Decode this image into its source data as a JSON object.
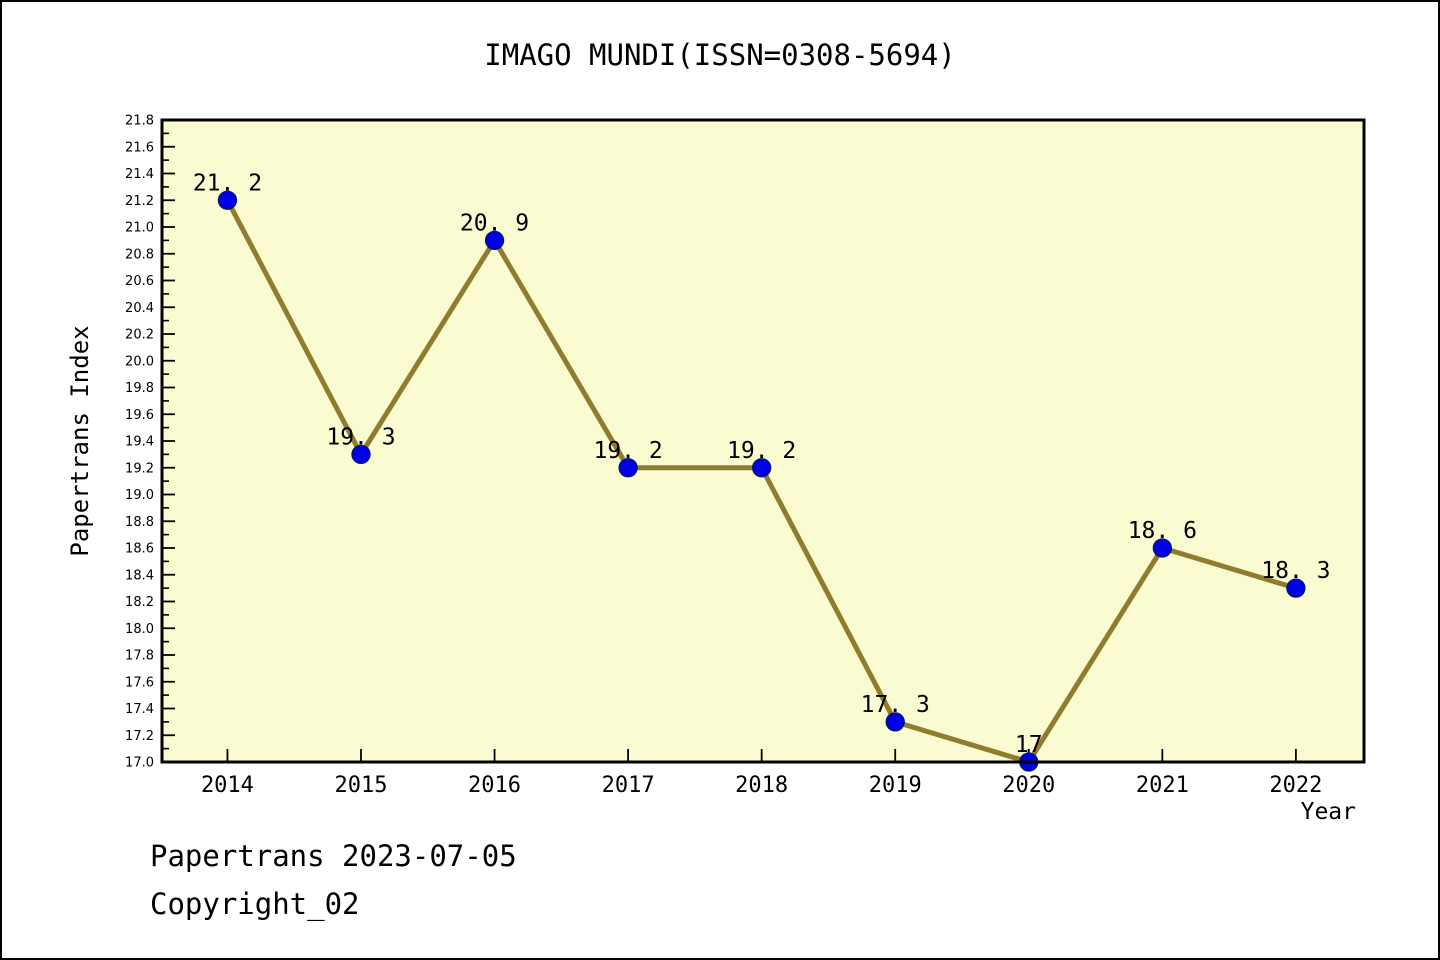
{
  "figure": {
    "footer": {
      "line1": "Papertrans 2023-07-05",
      "line2": "Copyright_02"
    }
  },
  "chart_data": {
    "type": "line",
    "title": "IMAGO MUNDI(ISSN=0308-5694)",
    "xlabel": "Year",
    "ylabel": "Papertrans Index",
    "x": [
      2014,
      2015,
      2016,
      2017,
      2018,
      2019,
      2020,
      2021,
      2022
    ],
    "xtick_labels": [
      "2014",
      "2015",
      "2016",
      "2017",
      "2018",
      "2019",
      "2020",
      "2021",
      "2022"
    ],
    "series": [
      {
        "name": "Papertrans Index",
        "values": [
          21.2,
          19.3,
          20.9,
          19.2,
          19.2,
          17.3,
          17.0,
          18.6,
          18.3
        ]
      }
    ],
    "point_labels": [
      "21. 2",
      "19. 3",
      "20. 9",
      "19. 2",
      "19. 2",
      "17. 3",
      "17",
      "18. 6",
      "18. 3"
    ],
    "ylim": [
      17.0,
      21.8
    ],
    "xlim": [
      2013.51,
      2022.51
    ],
    "ytick_step": 0.2,
    "ytick_minor_step": 0.1,
    "ytick_labels": [
      "17.0",
      "17.2",
      "17.4",
      "17.6",
      "17.8",
      "18.0",
      "18.2",
      "18.4",
      "18.6",
      "18.8",
      "19.0",
      "19.2",
      "19.4",
      "19.6",
      "19.8",
      "20.0",
      "20.2",
      "20.4",
      "20.6",
      "20.8",
      "21.0",
      "21.2",
      "21.4",
      "21.6",
      "21.8"
    ],
    "grid": false,
    "legend": "none",
    "colors": {
      "plot_bg": "#fbfbd2",
      "fig_bg": "#ffffff",
      "line": "#8f7c2f",
      "marker_fill": "#0000e8",
      "marker_edge": "#001a66",
      "axis": "#000000",
      "text": "#000000"
    }
  }
}
